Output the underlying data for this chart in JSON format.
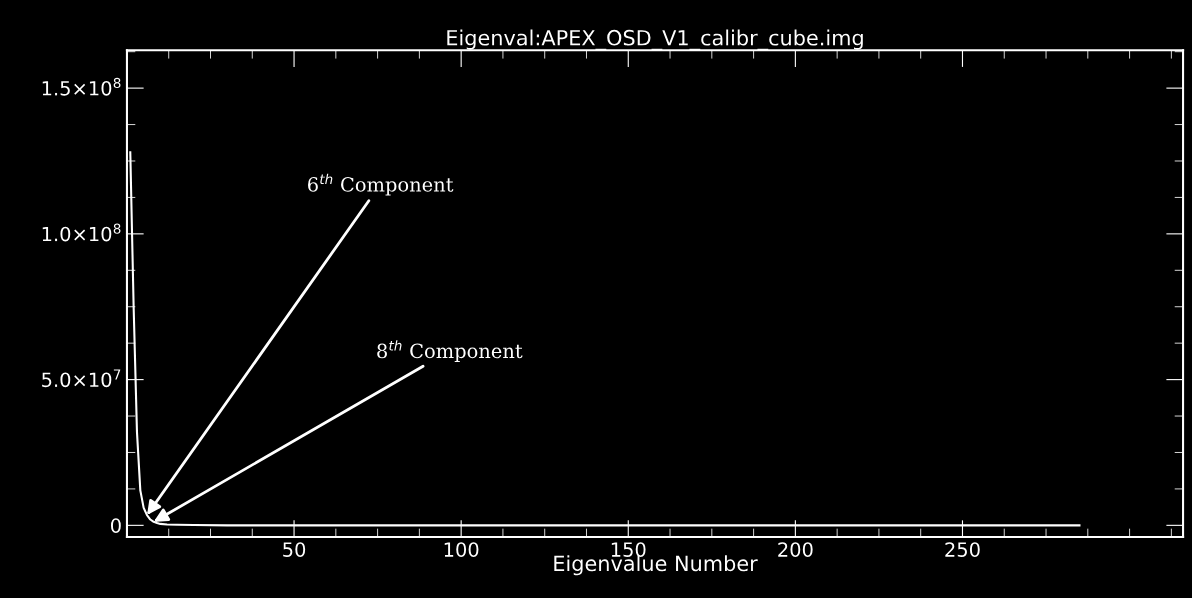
{
  "chart_data": {
    "type": "line",
    "title": "Eigenval:APEX_OSD_V1_calibr_cube.img",
    "xlabel": "Eigenvalue Number",
    "x": [
      1,
      2,
      3,
      4,
      5,
      6,
      7,
      8,
      9,
      10,
      12,
      15,
      20,
      30,
      50,
      100,
      150,
      200,
      250,
      285
    ],
    "series": [
      {
        "color": "#ffffff",
        "values": [
          128000000,
          75000000,
          32000000,
          12000000,
          6000000,
          3500000,
          2000000,
          1200000,
          800000,
          500000,
          300000,
          200000,
          100000,
          0,
          0,
          0,
          0,
          0,
          0,
          0
        ]
      }
    ],
    "xlim": [
      0,
      316
    ],
    "xticks": [
      50,
      100,
      150,
      200,
      250
    ],
    "ylim": [
      -4000000,
      163000000
    ],
    "yticks": [
      {
        "value": 0,
        "label": "0"
      },
      {
        "value": 50000000,
        "label": "5.0×10$^{7}$"
      },
      {
        "value": 100000000,
        "label": "1.0×10$^{8}$"
      },
      {
        "value": 150000000,
        "label": "1.5×10$^{8}$"
      }
    ],
    "annotations": [
      {
        "text": "6$^{th}$ Component",
        "x": 6,
        "y": 3500000
      },
      {
        "text": "8$^{th}$ Component",
        "x": 8,
        "y": 1200000
      }
    ],
    "grid": false,
    "legend": false,
    "marker": "none",
    "line_style": "solid"
  }
}
